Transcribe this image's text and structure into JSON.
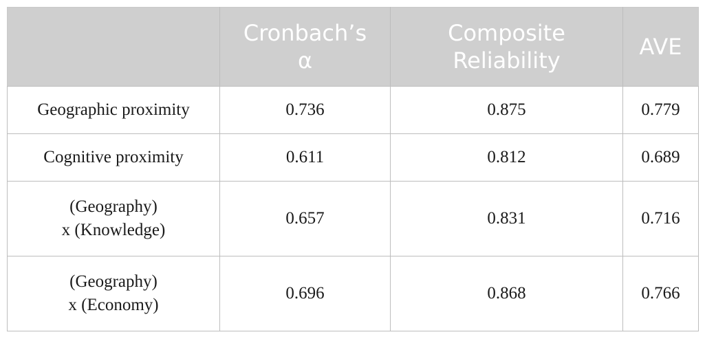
{
  "table": {
    "headers": [
      {
        "lines": [
          "",
          ""
        ]
      },
      {
        "lines": [
          "Cronbach’s",
          "α"
        ]
      },
      {
        "lines": [
          "Composite",
          "Reliability"
        ]
      },
      {
        "lines": [
          "AVE",
          ""
        ]
      }
    ],
    "rows": [
      {
        "label_lines": [
          "Geographic proximity"
        ],
        "values": [
          "0.736",
          "0.875",
          "0.779"
        ]
      },
      {
        "label_lines": [
          "Cognitive proximity"
        ],
        "values": [
          "0.611",
          "0.812",
          "0.689"
        ]
      },
      {
        "label_lines": [
          "(Geography)",
          "x (Knowledge)"
        ],
        "values": [
          "0.657",
          "0.831",
          "0.716"
        ]
      },
      {
        "label_lines": [
          "(Geography)",
          "x (Economy)"
        ],
        "values": [
          "0.696",
          "0.868",
          "0.766"
        ]
      }
    ]
  }
}
